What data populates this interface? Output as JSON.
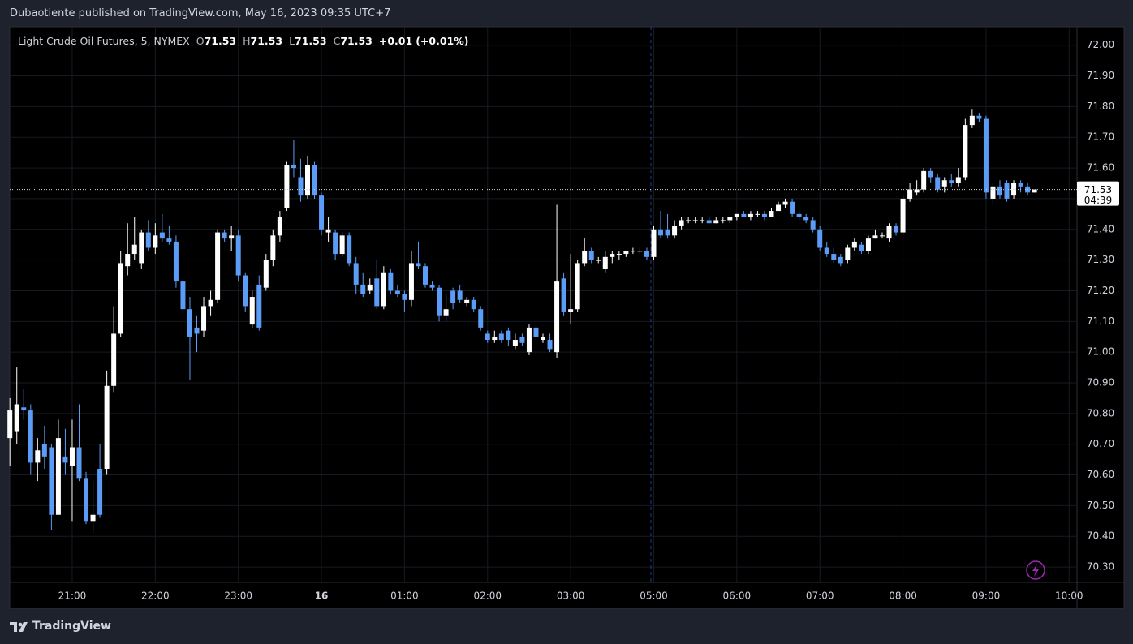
{
  "header": {
    "text": "Dubaotiente published on TradingView.com, May 16, 2023 09:35 UTC+7"
  },
  "chart_data": {
    "type": "candlestick",
    "symbol": "Light Crude Oil Futures, 5, NYMEX",
    "ohlc_legend": [
      {
        "label": "O",
        "value": 71.53
      },
      {
        "label": "H",
        "value": 71.53
      },
      {
        "label": "L",
        "value": 71.53
      },
      {
        "label": "C",
        "value": 71.53
      }
    ],
    "change": {
      "value": 0.01,
      "label": "+0.01"
    },
    "change_percent": {
      "value": 0.01,
      "label": "(+0.01%)"
    },
    "last_price": 71.53,
    "countdown": "04:39",
    "categories": [
      null,
      null,
      null,
      null,
      null,
      null,
      null,
      null,
      null,
      "21:00",
      null,
      null,
      null,
      null,
      null,
      null,
      null,
      null,
      null,
      null,
      null,
      "22:00",
      null,
      null,
      null,
      null,
      null,
      null,
      null,
      null,
      null,
      null,
      null,
      "23:00",
      null,
      null,
      null,
      null,
      null,
      null,
      null,
      null,
      null,
      null,
      null,
      "16",
      null,
      null,
      null,
      null,
      null,
      null,
      null,
      null,
      null,
      null,
      null,
      "01:00",
      null,
      null,
      null,
      null,
      null,
      null,
      null,
      null,
      null,
      null,
      null,
      "02:00",
      null,
      null,
      null,
      null,
      null,
      null,
      null,
      null,
      null,
      null,
      null,
      "03:00",
      null,
      null,
      null,
      null,
      null,
      null,
      null,
      null,
      null,
      null,
      null,
      "05:00",
      null,
      null,
      null,
      null,
      null,
      null,
      null,
      null,
      null,
      null,
      null,
      "06:00",
      null,
      null,
      null,
      null,
      null,
      null,
      null,
      null,
      null,
      null,
      null,
      "07:00",
      null,
      null,
      null,
      null,
      null,
      null,
      null,
      null,
      null,
      null,
      null,
      "08:00",
      null,
      null,
      null,
      null,
      null,
      null,
      null,
      null,
      null,
      null,
      null,
      "09:00",
      null,
      null,
      null,
      null,
      null,
      null,
      null,
      null,
      null,
      null,
      null,
      "10:00"
    ],
    "open": [
      70.72,
      70.74,
      70.82,
      70.81,
      70.64,
      70.7,
      70.69,
      70.47,
      70.66,
      70.63,
      70.69,
      70.59,
      70.45,
      70.62,
      70.62,
      70.89,
      71.06,
      71.28,
      71.32,
      71.29,
      71.39,
      71.34,
      71.39,
      71.37,
      71.36,
      71.23,
      71.14,
      71.08,
      71.07,
      71.15,
      71.17,
      71.39,
      71.37,
      71.38,
      71.25,
      71.09,
      71.22,
      71.21,
      71.3,
      71.38,
      71.47,
      71.61,
      71.57,
      71.51,
      71.61,
      71.51,
      71.39,
      71.39,
      71.32,
      71.38,
      71.29,
      71.22,
      71.2,
      71.24,
      71.15,
      71.26,
      71.2,
      71.19,
      71.17,
      71.29,
      71.28,
      71.22,
      71.21,
      71.12,
      71.2,
      71.2,
      71.16,
      71.17,
      71.14,
      71.06,
      71.04,
      71.06,
      71.07,
      71.02,
      71.05,
      71.0,
      71.08,
      71.04,
      71.04,
      71.0,
      71.24,
      71.13,
      71.14,
      71.29,
      71.33,
      71.3,
      71.27,
      71.31,
      71.32,
      71.32,
      71.33,
      71.33,
      71.33,
      71.31,
      71.4,
      71.4,
      71.38,
      71.41,
      71.43,
      71.43,
      71.43,
      71.43,
      71.42,
      71.43,
      71.43,
      71.44,
      71.45,
      71.44,
      71.45,
      71.45,
      71.44,
      71.46,
      71.48,
      71.49,
      71.45,
      71.44,
      71.43,
      71.4,
      71.34,
      71.32,
      71.31,
      71.3,
      71.34,
      71.35,
      71.33,
      71.37,
      71.38,
      71.37,
      71.41,
      71.39,
      71.5,
      71.52,
      71.53,
      71.59,
      71.57,
      71.54,
      71.56,
      71.55,
      71.57,
      71.74,
      71.77,
      71.76,
      71.5,
      71.54,
      71.55,
      71.51,
      71.55,
      71.54,
      71.52,
      null,
      null,
      null,
      null,
      null
    ],
    "high": [
      70.85,
      70.95,
      70.88,
      70.83,
      70.72,
      70.76,
      70.7,
      70.78,
      70.75,
      70.78,
      70.83,
      70.61,
      70.58,
      70.7,
      70.94,
      71.15,
      71.33,
      71.42,
      71.44,
      71.4,
      71.43,
      71.42,
      71.45,
      71.41,
      71.38,
      71.24,
      71.18,
      71.12,
      71.18,
      71.2,
      71.4,
      71.4,
      71.41,
      71.4,
      71.26,
      71.2,
      71.25,
      71.32,
      71.4,
      71.46,
      71.62,
      71.69,
      71.63,
      71.64,
      71.62,
      71.52,
      71.44,
      71.4,
      71.39,
      71.39,
      71.31,
      71.26,
      71.24,
      71.3,
      71.28,
      71.27,
      71.22,
      71.2,
      71.33,
      71.36,
      71.29,
      71.23,
      71.22,
      71.19,
      71.21,
      71.22,
      71.18,
      71.18,
      71.15,
      71.07,
      71.07,
      71.07,
      71.08,
      71.06,
      71.06,
      71.09,
      71.09,
      71.06,
      71.06,
      71.48,
      71.26,
      71.32,
      71.3,
      71.37,
      71.34,
      71.31,
      71.33,
      71.33,
      71.33,
      71.33,
      71.34,
      71.34,
      71.34,
      71.41,
      71.46,
      71.45,
      71.43,
      71.44,
      71.44,
      71.44,
      71.44,
      71.44,
      71.44,
      71.44,
      71.44,
      71.45,
      71.46,
      71.46,
      71.46,
      71.46,
      71.47,
      71.49,
      71.5,
      71.5,
      71.46,
      71.45,
      71.44,
      71.41,
      71.36,
      71.34,
      71.32,
      71.35,
      71.37,
      71.36,
      71.38,
      71.4,
      71.39,
      71.42,
      71.42,
      71.51,
      71.55,
      71.56,
      71.6,
      71.6,
      71.58,
      71.57,
      71.58,
      71.6,
      71.76,
      71.79,
      71.78,
      71.77,
      71.55,
      71.56,
      71.56,
      71.56,
      71.56,
      71.55,
      71.53,
      null,
      null,
      null,
      null,
      null
    ],
    "low": [
      70.63,
      70.7,
      70.78,
      70.6,
      70.58,
      70.62,
      70.42,
      70.47,
      70.6,
      70.45,
      70.58,
      70.44,
      70.41,
      70.46,
      70.6,
      70.87,
      71.05,
      71.25,
      71.3,
      71.27,
      71.33,
      71.32,
      71.36,
      71.35,
      71.21,
      71.12,
      70.91,
      71.0,
      71.05,
      71.12,
      71.16,
      71.36,
      71.33,
      71.23,
      71.13,
      71.08,
      71.07,
      71.2,
      71.28,
      71.36,
      71.46,
      71.57,
      71.49,
      71.5,
      71.5,
      71.38,
      71.36,
      71.3,
      71.31,
      71.28,
      71.19,
      71.18,
      71.19,
      71.14,
      71.14,
      71.19,
      71.18,
      71.13,
      71.15,
      71.27,
      71.21,
      71.2,
      71.1,
      71.1,
      71.14,
      71.16,
      71.15,
      71.13,
      71.07,
      71.03,
      71.03,
      71.03,
      71.02,
      71.01,
      71.02,
      70.99,
      71.04,
      71.03,
      71.0,
      70.98,
      71.12,
      71.09,
      71.13,
      71.28,
      71.29,
      71.29,
      71.26,
      71.29,
      71.3,
      71.31,
      71.32,
      71.32,
      71.3,
      71.3,
      71.37,
      71.37,
      71.37,
      71.4,
      71.42,
      71.42,
      71.42,
      71.42,
      71.42,
      71.42,
      71.42,
      71.43,
      71.44,
      71.43,
      71.44,
      71.43,
      71.44,
      71.46,
      71.47,
      71.44,
      71.43,
      71.42,
      71.39,
      71.33,
      71.31,
      71.29,
      71.28,
      71.29,
      71.33,
      71.32,
      71.32,
      71.37,
      71.37,
      71.36,
      71.38,
      71.38,
      71.49,
      71.51,
      71.52,
      71.55,
      71.52,
      71.52,
      71.54,
      71.54,
      71.56,
      71.73,
      71.75,
      71.5,
      71.48,
      71.5,
      71.49,
      71.5,
      71.52,
      71.51,
      71.52,
      null,
      null,
      null,
      null,
      null
    ],
    "close": [
      70.81,
      70.83,
      70.81,
      70.64,
      70.68,
      70.66,
      70.47,
      70.72,
      70.64,
      70.69,
      70.59,
      70.45,
      70.47,
      70.47,
      70.89,
      71.06,
      71.29,
      71.32,
      71.35,
      71.39,
      71.34,
      71.38,
      71.37,
      71.36,
      71.23,
      71.14,
      71.05,
      71.06,
      71.15,
      71.17,
      71.39,
      71.37,
      71.38,
      71.25,
      71.15,
      71.18,
      71.08,
      71.3,
      71.38,
      71.44,
      71.61,
      71.6,
      71.51,
      71.61,
      71.51,
      71.4,
      71.4,
      71.32,
      71.38,
      71.29,
      71.22,
      71.19,
      71.22,
      71.15,
      71.26,
      71.2,
      71.19,
      71.17,
      71.29,
      71.28,
      71.22,
      71.21,
      71.12,
      71.14,
      71.16,
      71.17,
      71.17,
      71.14,
      71.08,
      71.04,
      71.05,
      71.04,
      71.04,
      71.04,
      71.03,
      71.08,
      71.05,
      71.05,
      71.01,
      71.23,
      71.13,
      71.14,
      71.29,
      71.33,
      71.3,
      71.3,
      71.31,
      71.32,
      71.32,
      71.33,
      71.33,
      71.33,
      71.31,
      71.4,
      71.38,
      71.38,
      71.41,
      71.43,
      71.43,
      71.43,
      71.43,
      71.42,
      71.43,
      71.43,
      71.44,
      71.45,
      71.44,
      71.45,
      71.45,
      71.44,
      71.46,
      71.48,
      71.49,
      71.45,
      71.44,
      71.43,
      71.4,
      71.34,
      71.32,
      71.3,
      71.29,
      71.34,
      71.36,
      71.33,
      71.37,
      71.38,
      71.38,
      71.41,
      71.39,
      71.5,
      71.53,
      71.53,
      71.59,
      71.57,
      71.53,
      71.56,
      71.55,
      71.57,
      71.74,
      71.77,
      71.76,
      71.52,
      71.54,
      71.51,
      71.5,
      71.55,
      71.54,
      71.52,
      71.53,
      null,
      null,
      null,
      null,
      null
    ],
    "up_color": "#ffffff",
    "down_color": "#5b9cf6",
    "ylim": [
      70.25,
      72.06
    ],
    "yticks": [
      {
        "value": 70.3,
        "label": "70.30"
      },
      {
        "value": 70.4,
        "label": "70.40"
      },
      {
        "value": 70.5,
        "label": "70.50"
      },
      {
        "value": 70.6,
        "label": "70.60"
      },
      {
        "value": 70.7,
        "label": "70.70"
      },
      {
        "value": 70.8,
        "label": "70.80"
      },
      {
        "value": 70.9,
        "label": "70.90"
      },
      {
        "value": 71,
        "label": "71.00"
      },
      {
        "value": 71.1,
        "label": "71.10"
      },
      {
        "value": 71.2,
        "label": "71.20"
      },
      {
        "value": 71.3,
        "label": "71.30"
      },
      {
        "value": 71.4,
        "label": "71.40"
      },
      {
        "value": 71.5,
        "label": "71.50"
      },
      {
        "value": 71.6,
        "label": "71.60"
      },
      {
        "value": 71.7,
        "label": "71.70"
      },
      {
        "value": 71.8,
        "label": "71.80"
      },
      {
        "value": 71.9,
        "label": "71.90"
      },
      {
        "value": 72,
        "label": "72.00"
      }
    ],
    "grid": true
  },
  "footer": {
    "brand": "TradingView"
  }
}
